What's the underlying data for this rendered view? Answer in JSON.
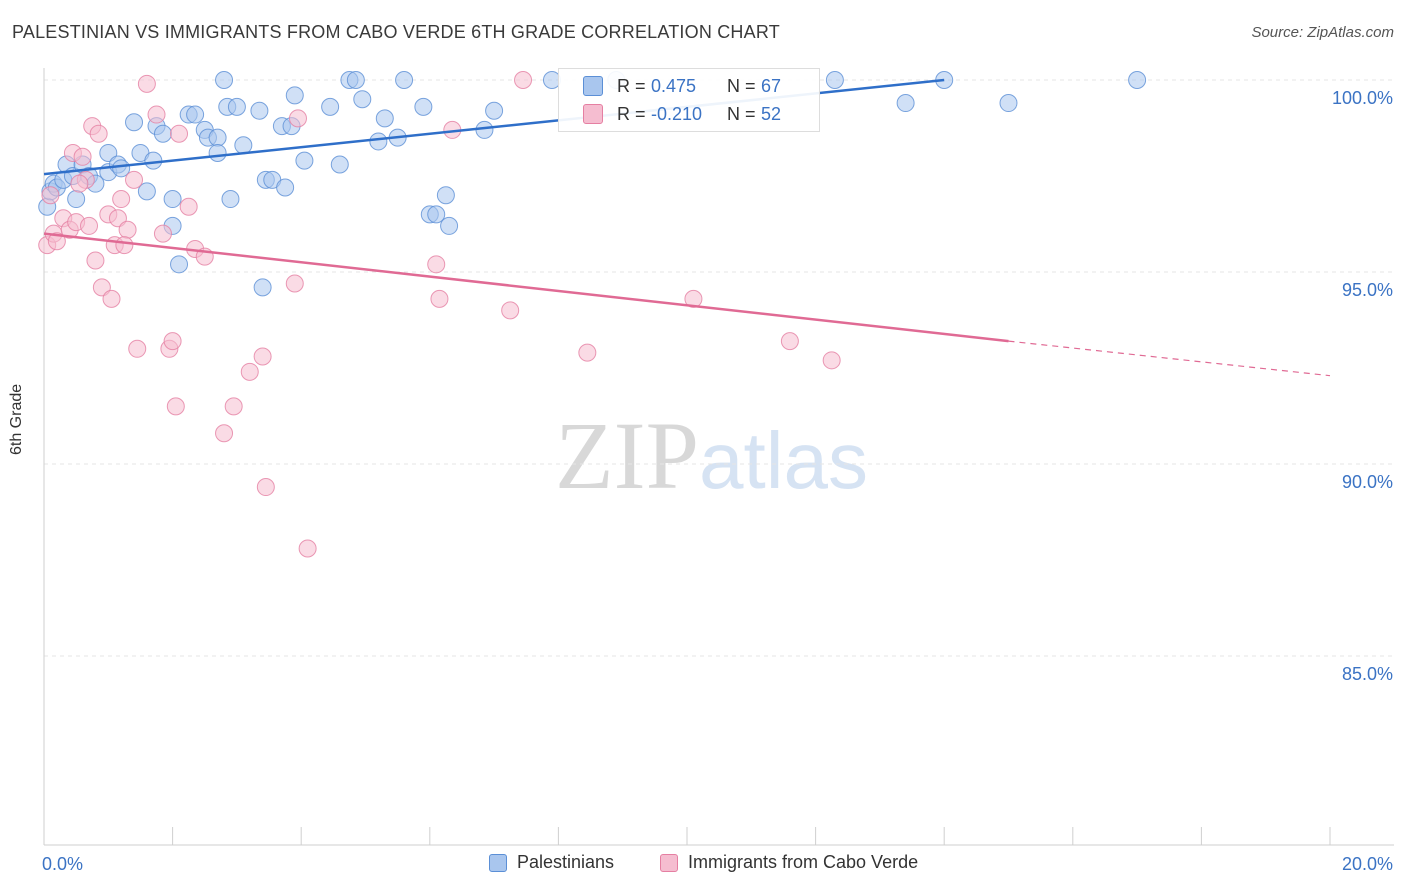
{
  "header": {
    "title": "PALESTINIAN VS IMMIGRANTS FROM CABO VERDE 6TH GRADE CORRELATION CHART",
    "source": "Source: ZipAtlas.com"
  },
  "watermark": {
    "zip": "ZIP",
    "atlas": "atlas"
  },
  "colors": {
    "blue": "#5b8fd6",
    "blue_fill": "#a9c6ee",
    "blue_line": "#2f6fc9",
    "pink": "#e57fa2",
    "pink_fill": "#f5bdd0",
    "pink_line": "#e06a94",
    "tick_label": "#3b73c4",
    "grid": "#e6e6e6"
  },
  "legend_top": {
    "rows": [
      {
        "r_label": "R =",
        "r_value": "0.475",
        "n_label": "N =",
        "n_value": "67"
      },
      {
        "r_label": "R =",
        "r_value": "-0.210",
        "n_label": "N =",
        "n_value": "52"
      }
    ]
  },
  "legend_bottom": [
    {
      "label": "Palestinians"
    },
    {
      "label": "Immigrants from Cabo Verde"
    }
  ],
  "chart_data": {
    "type": "scatter",
    "title": "PALESTINIAN VS IMMIGRANTS FROM CABO VERDE 6TH GRADE CORRELATION CHART",
    "xlabel": "",
    "ylabel": "6th Grade",
    "xlim": [
      0,
      20
    ],
    "ylim": [
      80.5,
      100.7
    ],
    "x_tick_labels": [
      "0.0%",
      "20.0%"
    ],
    "y_ticks": [
      100,
      95,
      90,
      85
    ],
    "y_tick_labels": [
      "100.0%",
      "95.0%",
      "90.0%",
      "85.0%"
    ],
    "grid": true,
    "legend_placement": "top-center",
    "series": [
      {
        "name": "Palestinians",
        "r": 0.475,
        "n": 67,
        "trend": {
          "x": [
            0,
            14.0
          ],
          "y": [
            97.55,
            100.0
          ]
        },
        "points": [
          [
            0.05,
            96.7
          ],
          [
            0.1,
            97.1
          ],
          [
            0.15,
            97.3
          ],
          [
            0.2,
            97.2
          ],
          [
            0.3,
            97.4
          ],
          [
            0.35,
            97.8
          ],
          [
            0.45,
            97.5
          ],
          [
            0.5,
            96.9
          ],
          [
            0.6,
            97.8
          ],
          [
            0.7,
            97.5
          ],
          [
            0.8,
            97.3
          ],
          [
            1.0,
            97.6
          ],
          [
            1.0,
            98.1
          ],
          [
            1.15,
            97.8
          ],
          [
            1.2,
            97.7
          ],
          [
            1.4,
            98.9
          ],
          [
            1.5,
            98.1
          ],
          [
            1.6,
            97.1
          ],
          [
            1.7,
            97.9
          ],
          [
            1.75,
            98.8
          ],
          [
            1.85,
            98.6
          ],
          [
            2.0,
            96.2
          ],
          [
            2.0,
            96.9
          ],
          [
            2.1,
            95.2
          ],
          [
            2.25,
            99.1
          ],
          [
            2.35,
            99.1
          ],
          [
            2.5,
            98.7
          ],
          [
            2.55,
            98.5
          ],
          [
            2.7,
            98.5
          ],
          [
            2.7,
            98.1
          ],
          [
            2.8,
            100.0
          ],
          [
            2.85,
            99.3
          ],
          [
            2.9,
            96.9
          ],
          [
            3.0,
            99.3
          ],
          [
            3.1,
            98.3
          ],
          [
            3.35,
            99.2
          ],
          [
            3.4,
            94.6
          ],
          [
            3.45,
            97.4
          ],
          [
            3.55,
            97.4
          ],
          [
            3.7,
            98.8
          ],
          [
            3.75,
            97.2
          ],
          [
            3.85,
            98.8
          ],
          [
            3.9,
            99.6
          ],
          [
            4.05,
            97.9
          ],
          [
            4.45,
            99.3
          ],
          [
            4.6,
            97.8
          ],
          [
            4.75,
            100.0
          ],
          [
            4.85,
            100.0
          ],
          [
            4.95,
            99.5
          ],
          [
            5.2,
            98.4
          ],
          [
            5.3,
            99.0
          ],
          [
            5.5,
            98.5
          ],
          [
            5.6,
            100.0
          ],
          [
            5.9,
            99.3
          ],
          [
            6.0,
            96.5
          ],
          [
            6.1,
            96.5
          ],
          [
            6.25,
            97.0
          ],
          [
            6.3,
            96.2
          ],
          [
            6.85,
            98.7
          ],
          [
            7.0,
            99.2
          ],
          [
            7.9,
            100.0
          ],
          [
            8.9,
            100.0
          ],
          [
            12.3,
            100.0
          ],
          [
            13.4,
            99.4
          ],
          [
            14.0,
            100.0
          ],
          [
            15.0,
            99.4
          ],
          [
            17.0,
            100.0
          ]
        ]
      },
      {
        "name": "Immigrants from Cabo Verde",
        "r": -0.21,
        "n": 52,
        "trend": {
          "x": [
            0,
            15.0
          ],
          "y": [
            96.0,
            93.2
          ]
        },
        "trend_dashed": {
          "x": [
            15.0,
            20.0
          ],
          "y": [
            93.2,
            92.3
          ]
        },
        "points": [
          [
            0.05,
            95.7
          ],
          [
            0.1,
            97.0
          ],
          [
            0.15,
            96.0
          ],
          [
            0.2,
            95.8
          ],
          [
            0.3,
            96.4
          ],
          [
            0.4,
            96.1
          ],
          [
            0.45,
            98.1
          ],
          [
            0.5,
            96.3
          ],
          [
            0.6,
            98.0
          ],
          [
            0.65,
            97.4
          ],
          [
            0.7,
            96.2
          ],
          [
            0.75,
            98.8
          ],
          [
            0.8,
            95.3
          ],
          [
            0.85,
            98.6
          ],
          [
            0.9,
            94.6
          ],
          [
            1.0,
            96.5
          ],
          [
            1.05,
            94.3
          ],
          [
            1.1,
            95.7
          ],
          [
            1.15,
            96.4
          ],
          [
            1.2,
            96.9
          ],
          [
            1.3,
            96.1
          ],
          [
            1.4,
            97.4
          ],
          [
            1.45,
            93.0
          ],
          [
            1.6,
            99.9
          ],
          [
            1.75,
            99.1
          ],
          [
            1.85,
            96.0
          ],
          [
            1.95,
            93.0
          ],
          [
            2.0,
            93.2
          ],
          [
            2.05,
            91.5
          ],
          [
            2.1,
            98.6
          ],
          [
            2.25,
            96.7
          ],
          [
            2.35,
            95.6
          ],
          [
            2.5,
            95.4
          ],
          [
            2.8,
            90.8
          ],
          [
            2.95,
            91.5
          ],
          [
            3.2,
            92.4
          ],
          [
            3.4,
            92.8
          ],
          [
            3.45,
            89.4
          ],
          [
            3.9,
            94.7
          ],
          [
            3.95,
            99.0
          ],
          [
            4.1,
            87.8
          ],
          [
            6.1,
            95.2
          ],
          [
            6.15,
            94.3
          ],
          [
            6.35,
            98.7
          ],
          [
            7.25,
            94.0
          ],
          [
            7.45,
            100.0
          ],
          [
            8.45,
            92.9
          ],
          [
            10.1,
            94.3
          ],
          [
            11.6,
            93.2
          ],
          [
            12.25,
            92.7
          ],
          [
            0.55,
            97.3
          ],
          [
            1.25,
            95.7
          ]
        ]
      }
    ]
  }
}
